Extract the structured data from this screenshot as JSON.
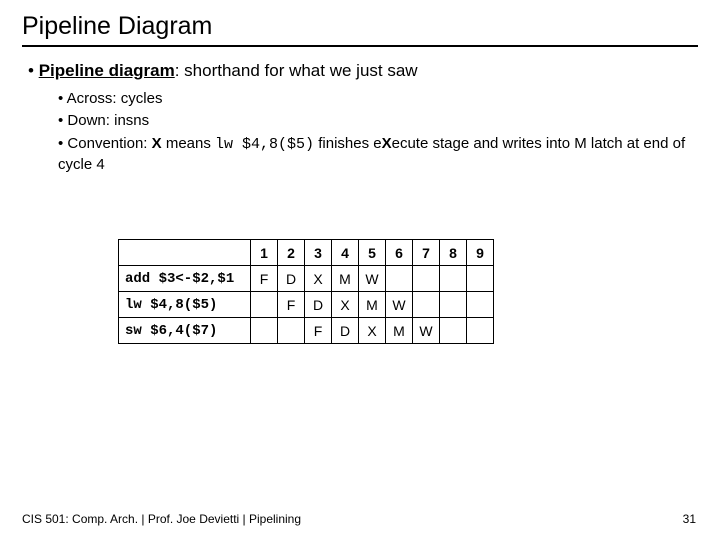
{
  "title": "Pipeline Diagram",
  "point1": {
    "bold": "Pipeline diagram",
    "rest": ": shorthand for what we just saw"
  },
  "sub1": "Across: cycles",
  "sub2": "Down: insns",
  "sub3": {
    "p1": "Convention: ",
    "b1": "X",
    "p2": " means ",
    "code": "lw $4,8($5)",
    "p3": " finishes e",
    "b2": "X",
    "p4": "ecute stage and writes into M latch at end of cycle 4"
  },
  "table": {
    "headers": [
      "1",
      "2",
      "3",
      "4",
      "5",
      "6",
      "7",
      "8",
      "9"
    ],
    "rows": [
      {
        "inst": "add $3<-$2,$1",
        "cells": [
          "F",
          "D",
          "X",
          "M",
          "W",
          "",
          "",
          "",
          ""
        ]
      },
      {
        "inst": "lw $4,8($5)",
        "cells": [
          "",
          "F",
          "D",
          "X",
          "M",
          "W",
          "",
          "",
          ""
        ]
      },
      {
        "inst": "sw $6,4($7)",
        "cells": [
          "",
          "",
          "F",
          "D",
          "X",
          "M",
          "W",
          "",
          ""
        ]
      }
    ]
  },
  "footer": "CIS 501: Comp. Arch.  |  Prof. Joe Devietti  |  Pipelining",
  "pagenum": "31",
  "colors": {
    "background": "#ffffff",
    "text": "#000000",
    "border": "#000000"
  }
}
